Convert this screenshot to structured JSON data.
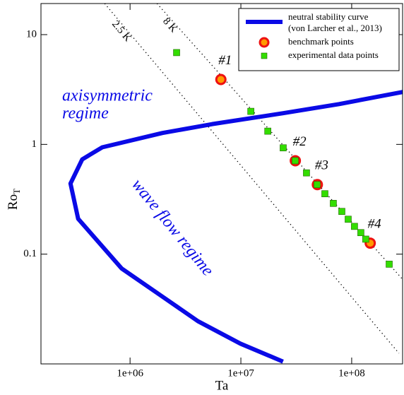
{
  "chart_data": {
    "type": "line",
    "x_label": "Ta",
    "y_label": "Ro",
    "y_label_subscript": "T",
    "x_log": true,
    "y_log": true,
    "xlim": [
      157000,
      288000000
    ],
    "ylim": [
      0.01,
      19.2
    ],
    "xticks": [
      {
        "value": 1000000,
        "label": "1e+06"
      },
      {
        "value": 10000000,
        "label": "1e+07"
      },
      {
        "value": 100000000,
        "label": "1e+08"
      }
    ],
    "yticks": [
      0.1,
      1,
      10
    ],
    "legend": "top-right",
    "series": [
      {
        "name": [
          "neutral stability curve",
          "(von Larcher et al., 2013)"
        ],
        "mode": "line",
        "color": "#0a0ae6",
        "x": [
          24000000,
          9900000,
          4100000,
          1960000,
          840000,
          340000,
          290000,
          370000,
          560000,
          1960000,
          5500000,
          23800000,
          77000000,
          288000000
        ],
        "values": [
          0.0105,
          0.0153,
          0.0245,
          0.041,
          0.074,
          0.21,
          0.44,
          0.73,
          0.94,
          1.27,
          1.53,
          1.92,
          2.33,
          3.0
        ]
      },
      {
        "name": [
          "benchmark points"
        ],
        "mode": "circle",
        "color": "#ff9a00",
        "edge": "#ee1111",
        "x": [
          6600000,
          31000000,
          49000000,
          147000000
        ],
        "values": [
          3.9,
          0.71,
          0.43,
          0.126
        ],
        "labels": [
          "#1",
          "#2",
          "#3",
          "#4"
        ]
      },
      {
        "name": [
          "experimental data points"
        ],
        "mode": "square",
        "color": "#33dd00",
        "edge": "#226600",
        "x": [
          2630000,
          12300000,
          17500000,
          24100000,
          30900000,
          39100000,
          48700000,
          57300000,
          68300000,
          81500000,
          93000000,
          106000000,
          121000000,
          134000000,
          218000000
        ],
        "values": [
          6.86,
          2.0,
          1.32,
          0.93,
          0.71,
          0.55,
          0.43,
          0.355,
          0.29,
          0.245,
          0.208,
          0.179,
          0.157,
          0.137,
          0.081
        ]
      }
    ],
    "reference_lines": [
      {
        "label": "2.5 K",
        "x": [
          590000,
          267000000
        ],
        "values": [
          19.2,
          0.0125
        ]
      },
      {
        "label": "8 K",
        "x": [
          1750000,
          288000000
        ],
        "values": [
          19.2,
          0.059
        ]
      }
    ],
    "annotations": [
      {
        "lines": [
          "axisymmetric",
          "regime"
        ]
      },
      {
        "lines": [
          "wave flow regime"
        ]
      }
    ]
  }
}
